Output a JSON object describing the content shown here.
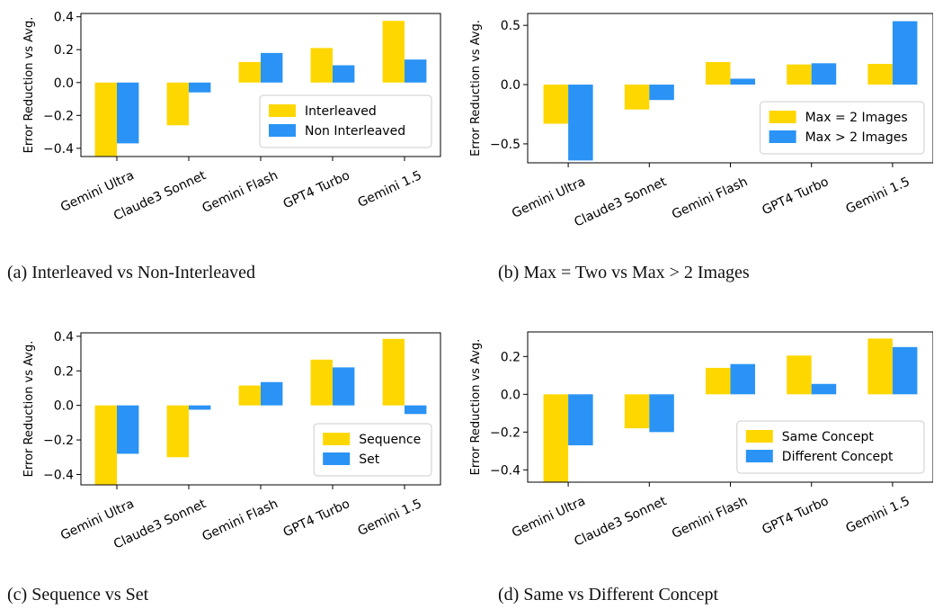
{
  "colors": {
    "series1": "#ffd700",
    "series2": "#2a93f5"
  },
  "chart_data": [
    {
      "type": "bar",
      "caption": "(a) Interleaved vs Non-Interleaved",
      "categories": [
        "Gemini Ultra",
        "Claude3 Sonnet",
        "Gemini Flash",
        "GPT4 Turbo",
        "Gemini 1.5"
      ],
      "series": [
        {
          "name": "Interleaved",
          "values": [
            -0.45,
            -0.26,
            0.125,
            0.21,
            0.375
          ]
        },
        {
          "name": "Non Interleaved",
          "values": [
            -0.37,
            -0.06,
            0.18,
            0.105,
            0.14
          ]
        }
      ],
      "ylabel": "Error Reduction vs Avg.",
      "ylim": [
        -0.45,
        0.42
      ],
      "yticks": [
        -0.4,
        -0.2,
        0.0,
        0.2,
        0.4
      ],
      "ytick_labels": [
        "−0.4",
        "−0.2",
        "0.0",
        "0.2",
        "0.4"
      ],
      "legend": "lower-right",
      "grid": false
    },
    {
      "type": "bar",
      "caption": "(b) Max = Two vs Max > 2 Images",
      "categories": [
        "Gemini Ultra",
        "Claude3 Sonnet",
        "Gemini Flash",
        "GPT4 Turbo",
        "Gemini 1.5"
      ],
      "series": [
        {
          "name": "Max = 2 Images",
          "values": [
            -0.33,
            -0.21,
            0.19,
            0.17,
            0.175
          ]
        },
        {
          "name": "Max > 2 Images",
          "values": [
            -0.64,
            -0.13,
            0.05,
            0.18,
            0.535
          ]
        }
      ],
      "ylabel": "Error Reduction vs Avg.",
      "ylim": [
        -0.66,
        0.6
      ],
      "yticks": [
        -0.5,
        0.0,
        0.5
      ],
      "ytick_labels": [
        "−0.5",
        "0.0",
        "0.5"
      ],
      "legend": "lower-right",
      "grid": false
    },
    {
      "type": "bar",
      "caption": "(c) Sequence vs Set",
      "categories": [
        "Gemini Ultra",
        "Claude3 Sonnet",
        "Gemini Flash",
        "GPT4 Turbo",
        "Gemini 1.5"
      ],
      "series": [
        {
          "name": "Sequence",
          "values": [
            -0.46,
            -0.3,
            0.115,
            0.265,
            0.385
          ]
        },
        {
          "name": "Set",
          "values": [
            -0.28,
            -0.025,
            0.135,
            0.22,
            -0.05
          ]
        }
      ],
      "ylabel": "Error Reduction vs Avg.",
      "ylim": [
        -0.46,
        0.42
      ],
      "yticks": [
        -0.4,
        -0.2,
        0.0,
        0.2,
        0.4
      ],
      "ytick_labels": [
        "−0.4",
        "−0.2",
        "0.0",
        "0.2",
        "0.4"
      ],
      "legend": "lower-right",
      "grid": false
    },
    {
      "type": "bar",
      "caption": "(d) Same vs Different Concept",
      "categories": [
        "Gemini Ultra",
        "Claude3 Sonnet",
        "Gemini Flash",
        "GPT4 Turbo",
        "Gemini 1.5"
      ],
      "series": [
        {
          "name": "Same Concept",
          "values": [
            -0.465,
            -0.18,
            0.14,
            0.205,
            0.295
          ]
        },
        {
          "name": "Different Concept",
          "values": [
            -0.27,
            -0.2,
            0.16,
            0.055,
            0.25
          ]
        }
      ],
      "ylabel": "Error Reduction vs Avg.",
      "ylim": [
        -0.465,
        0.33
      ],
      "yticks": [
        -0.4,
        -0.2,
        0.0,
        0.2
      ],
      "ytick_labels": [
        "−0.4",
        "−0.2",
        "0.0",
        "0.2"
      ],
      "legend": "lower-right",
      "grid": false
    }
  ]
}
